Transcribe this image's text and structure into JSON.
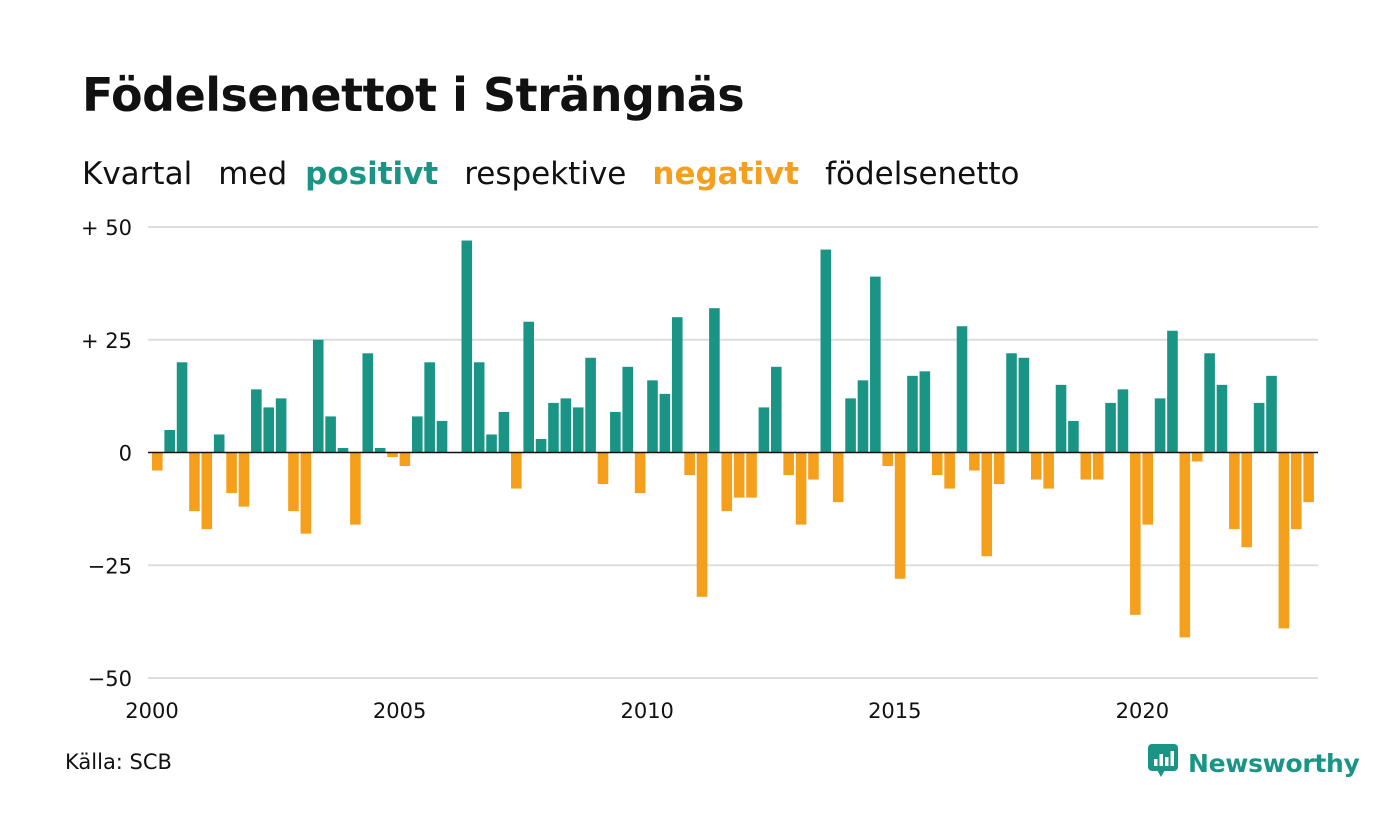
{
  "header": {
    "title": "Födelsenettot i Strängnäs",
    "subtitle_parts": {
      "p1": "Kvartal",
      "p2": "med",
      "positive": "positivt",
      "p3": "respektive",
      "negative": "negativt",
      "p4": "födelsenetto"
    }
  },
  "footer": {
    "source": "Källa: SCB",
    "brand": "Newsworthy",
    "brand_icon": "bar-chart-speech-bubble-icon"
  },
  "colors": {
    "positive": "#1a9585",
    "negative": "#f5a01c",
    "grid": "#dddddd",
    "zero_line": "#111111",
    "text": "#111111"
  },
  "chart_data": {
    "type": "bar",
    "title": "Födelsenettot i Strängnäs",
    "subtitle": "Kvartal med positivt respektive negativt födelsenetto",
    "xlabel": "",
    "ylabel": "",
    "ylim": [
      -50,
      50
    ],
    "yticks": [
      50,
      25,
      0,
      -25,
      -50
    ],
    "ytick_labels": [
      "+ 50",
      "+ 25",
      "0",
      "−25",
      "−50"
    ],
    "xticks": [
      2000,
      2005,
      2010,
      2015,
      2020
    ],
    "x_start_year": 2000,
    "grid": true,
    "quarters_per_year": 4,
    "values": [
      -4,
      5,
      20,
      -13,
      -17,
      4,
      -9,
      -12,
      14,
      10,
      12,
      -13,
      -18,
      25,
      8,
      1,
      -16,
      22,
      1,
      -1,
      -3,
      8,
      20,
      7,
      0,
      47,
      20,
      4,
      9,
      -8,
      29,
      3,
      11,
      12,
      10,
      21,
      -7,
      9,
      19,
      -9,
      16,
      13,
      30,
      -5,
      -32,
      32,
      -13,
      -10,
      -10,
      10,
      19,
      -5,
      -16,
      -6,
      45,
      -11,
      12,
      16,
      39,
      -3,
      -28,
      17,
      18,
      -5,
      -8,
      28,
      -4,
      -23,
      -7,
      22,
      21,
      -6,
      -8,
      15,
      7,
      -6,
      -6,
      11,
      14,
      -36,
      -16,
      12,
      27,
      -41,
      -2,
      22,
      15,
      -17,
      -21,
      11,
      17,
      -39,
      -17,
      -11
    ]
  }
}
